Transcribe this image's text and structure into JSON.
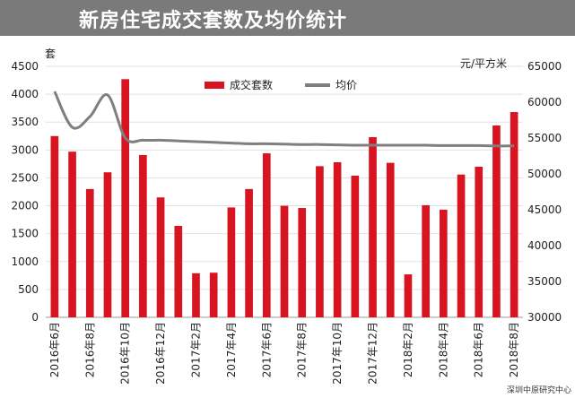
{
  "header": {
    "title": "新房住宅成交套数及均价统计"
  },
  "source": "深圳中原研究中心",
  "colors": {
    "bar": "#d7141f",
    "line": "#7f7f7f",
    "header_bg": "#7a7a7a"
  },
  "chart_data": {
    "type": "bar+line",
    "left_unit": "套",
    "right_unit": "元/平方米",
    "ylim_left": [
      0,
      4500
    ],
    "ylim_right": [
      30000,
      65000
    ],
    "yticks_left": [
      0,
      500,
      1000,
      1500,
      2000,
      2500,
      3000,
      3500,
      4000,
      4500
    ],
    "yticks_right": [
      30000,
      35000,
      40000,
      45000,
      50000,
      55000,
      60000,
      65000
    ],
    "x": [
      "2016年6月",
      "2016年7月",
      "2016年8月",
      "2016年9月",
      "2016年10月",
      "2016年11月",
      "2016年12月",
      "2017年1月",
      "2017年2月",
      "2017年3月",
      "2017年4月",
      "2017年5月",
      "2017年6月",
      "2017年7月",
      "2017年8月",
      "2017年9月",
      "2017年10月",
      "2017年11月",
      "2017年12月",
      "2018年1月",
      "2018年2月",
      "2018年3月",
      "2018年4月",
      "2018年5月",
      "2018年6月",
      "2018年7月",
      "2018年8月"
    ],
    "x_tick_labels": [
      "2016年6月",
      "2016年8月",
      "2016年10月",
      "2016年12月",
      "2017年2月",
      "2017年4月",
      "2017年6月",
      "2017年8月",
      "2017年10月",
      "2017年12月",
      "2018年2月",
      "2018年4月",
      "2018年6月",
      "2018年8月"
    ],
    "series": [
      {
        "name": "成交套数",
        "type": "bar",
        "values": [
          3250,
          2970,
          2300,
          2600,
          4270,
          2910,
          2150,
          1640,
          790,
          800,
          1970,
          2300,
          2940,
          2000,
          1960,
          2710,
          2780,
          2540,
          3230,
          2770,
          770,
          2010,
          1930,
          2560,
          2700,
          3440,
          3680
        ]
      },
      {
        "name": "均价",
        "type": "line",
        "values": [
          61500,
          56500,
          58000,
          61000,
          55000,
          54700,
          54700,
          54600,
          54500,
          54400,
          54300,
          54200,
          54200,
          54150,
          54100,
          54100,
          54050,
          54000,
          54000,
          54000,
          54000,
          54000,
          53950,
          53950,
          53950,
          53900,
          53900
        ]
      }
    ]
  }
}
